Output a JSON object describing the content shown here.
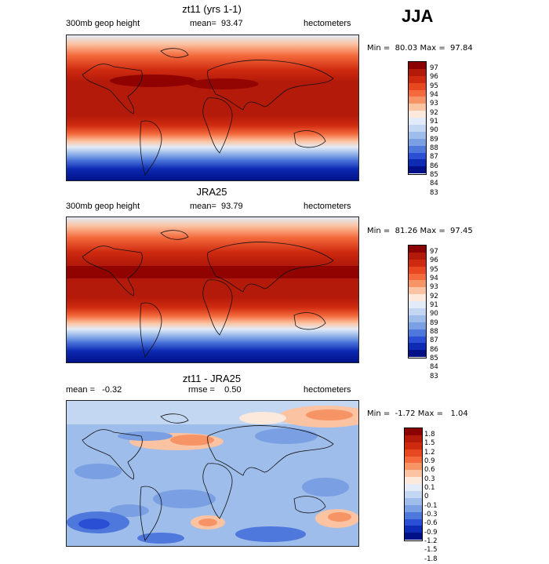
{
  "season": "JJA",
  "panels": [
    {
      "title": "zt11 (yrs 1-1)",
      "left": "300mb geop height",
      "center": "mean=  93.47",
      "right": "hectometers",
      "minmax": "Min =  80.03 Max =  97.84",
      "colorbar": {
        "labels": [
          "97",
          "96",
          "95",
          "94",
          "93",
          "92",
          "91",
          "90",
          "89",
          "88",
          "87",
          "86",
          "85",
          "84",
          "83"
        ],
        "colors": [
          "#8b0000",
          "#b41a0a",
          "#cf2a10",
          "#e84820",
          "#f46a3c",
          "#f79466",
          "#fbc3a2",
          "#fde8dc",
          "#e3ebf8",
          "#c4d7f2",
          "#9fbdea",
          "#7a9fe2",
          "#4f78dc",
          "#2a4fd4",
          "#0d2bb4",
          "#001187"
        ]
      }
    },
    {
      "title": "JRA25",
      "left": "300mb geop height",
      "center": "mean=  93.79",
      "right": "hectometers",
      "minmax": "Min =  81.26 Max =  97.45",
      "colorbar": {
        "labels": [
          "97",
          "96",
          "95",
          "94",
          "93",
          "92",
          "91",
          "90",
          "89",
          "88",
          "87",
          "86",
          "85",
          "84",
          "83"
        ],
        "colors": [
          "#8b0000",
          "#b41a0a",
          "#cf2a10",
          "#e84820",
          "#f46a3c",
          "#f79466",
          "#fbc3a2",
          "#fde8dc",
          "#e3ebf8",
          "#c4d7f2",
          "#9fbdea",
          "#7a9fe2",
          "#4f78dc",
          "#2a4fd4",
          "#0d2bb4",
          "#001187"
        ]
      }
    },
    {
      "title": "zt11 - JRA25",
      "left": "mean =   -0.32",
      "center": "rmse =    0.50",
      "right": "hectometers",
      "minmax": "Min =  -1.72 Max =   1.04",
      "colorbar": {
        "labels": [
          "1.8",
          "1.5",
          "1.2",
          "0.9",
          "0.6",
          "0.3",
          "0.1",
          "0",
          "-0.1",
          "-0.3",
          "-0.6",
          "-0.9",
          "-1.2",
          "-1.5",
          "-1.8"
        ],
        "colors": [
          "#8b0000",
          "#b41a0a",
          "#cf2a10",
          "#e84820",
          "#f46a3c",
          "#f79466",
          "#fbc3a2",
          "#fde8dc",
          "#e3ebf8",
          "#c4d7f2",
          "#9fbdea",
          "#7a9fe2",
          "#4f78dc",
          "#2a4fd4",
          "#0d2bb4",
          "#001187"
        ]
      }
    }
  ]
}
